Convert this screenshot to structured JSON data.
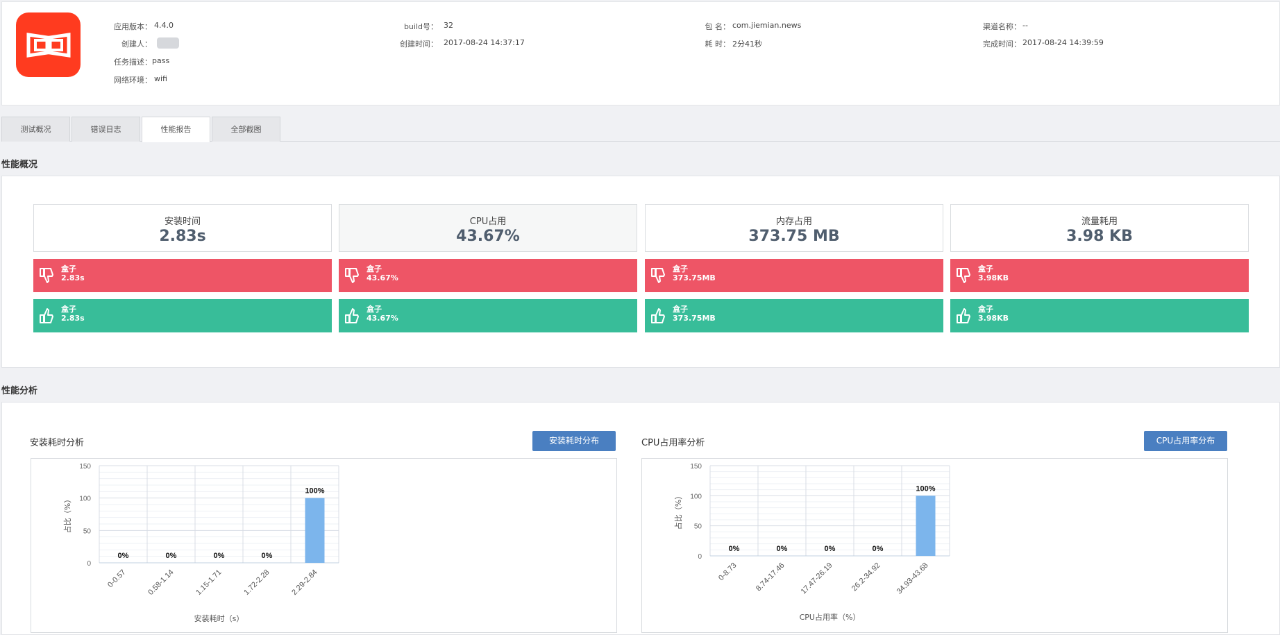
{
  "app": {
    "info": [
      {
        "label": "应用版本：",
        "value": "4.4.0"
      },
      {
        "label": "build号：",
        "value": "32"
      },
      {
        "label": "包 名：",
        "value": "com.jiemian.news"
      },
      {
        "label": "渠道名称：",
        "value": "--"
      },
      {
        "label": "创建人：",
        "value": ""
      },
      {
        "label": "创建时间：",
        "value": "2017-08-24 14:37:17"
      },
      {
        "label": "耗 时：",
        "value": "2分41秒"
      },
      {
        "label": "完成时间：",
        "value": "2017-08-24 14:39:59"
      },
      {
        "label": "任务描述：",
        "value": "pass"
      },
      {
        "label": "网络环境：",
        "value": "wifi"
      }
    ]
  },
  "tabs": [
    {
      "label": "测试概况",
      "active": false
    },
    {
      "label": "错误日志",
      "active": false
    },
    {
      "label": "性能报告",
      "active": true
    },
    {
      "label": "全部截图",
      "active": false
    }
  ],
  "overview": {
    "title": "性能概况",
    "metrics": [
      {
        "label": "安装时间",
        "value": "2.83s",
        "bad_name": "盒子",
        "bad_value": "2.83s",
        "good_name": "盒子",
        "good_value": "2.83s",
        "shaded": false
      },
      {
        "label": "CPU占用",
        "value": "43.67%",
        "bad_name": "盒子",
        "bad_value": "43.67%",
        "good_name": "盒子",
        "good_value": "43.67%",
        "shaded": true
      },
      {
        "label": "内存占用",
        "value": "373.75 MB",
        "bad_name": "盒子",
        "bad_value": "373.75MB",
        "good_name": "盒子",
        "good_value": "373.75MB",
        "shaded": false
      },
      {
        "label": "流量耗用",
        "value": "3.98 KB",
        "bad_name": "盒子",
        "bad_value": "3.98KB",
        "good_name": "盒子",
        "good_value": "3.98KB",
        "shaded": false
      }
    ],
    "colors": {
      "bad": "#ee5566",
      "good": "#38bd99"
    }
  },
  "analysis": {
    "title": "性能分析",
    "charts": [
      {
        "title": "安装耗时分析",
        "button": "安装耗时分布"
      },
      {
        "title": "CPU占用率分析",
        "button": "CPU占用率分布"
      }
    ]
  },
  "chart_data": [
    {
      "type": "bar",
      "title": "",
      "categories": [
        "0-0.57",
        "0.58-1.14",
        "1.15-1.71",
        "1.72-2.28",
        "2.29-2.84"
      ],
      "values": [
        0,
        0,
        0,
        0,
        100
      ],
      "data_labels": [
        "0%",
        "0%",
        "0%",
        "0%",
        "100%"
      ],
      "xlabel": "安装耗时（s）",
      "ylabel": "占比（%）",
      "yticks": [
        "0",
        "50",
        "100",
        "150"
      ],
      "ylim": [
        0,
        150
      ],
      "grid": true,
      "bar_color": "#7cb5ec"
    },
    {
      "type": "bar",
      "title": "",
      "categories": [
        "0-8.73",
        "8.74-17.46",
        "17.47-26.19",
        "26.2-34.92",
        "34.93-43.68"
      ],
      "values": [
        0,
        0,
        0,
        0,
        100
      ],
      "data_labels": [
        "0%",
        "0%",
        "0%",
        "0%",
        "100%"
      ],
      "xlabel": "CPU占用率（%）",
      "ylabel": "占比（%）",
      "yticks": [
        "0",
        "50",
        "100",
        "150"
      ],
      "ylim": [
        0,
        150
      ],
      "grid": true,
      "bar_color": "#7cb5ec"
    }
  ]
}
